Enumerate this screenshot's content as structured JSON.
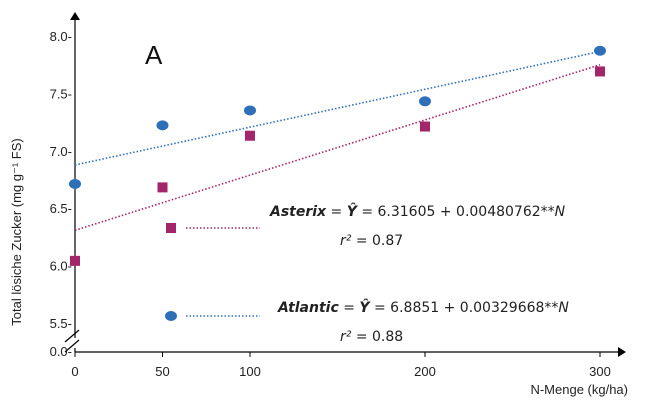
{
  "chart_data": {
    "type": "scatter",
    "panel_label": "A",
    "xlabel": "N-Menge (kg/ha)",
    "ylabel": "Total lösiche Zucker  (mg g⁻¹ FS)",
    "x_ticks": [
      "0",
      "50",
      "100",
      "200",
      "300"
    ],
    "x_tick_values": [
      0,
      50,
      100,
      200,
      300
    ],
    "y_ticks": [
      "8.0-",
      "7.5-",
      "7.0-",
      "6.5-",
      "6.0-",
      "5.5-",
      "0.0-"
    ],
    "y_tick_values": [
      8.0,
      7.5,
      7.0,
      6.5,
      6.0,
      5.5,
      0.0
    ],
    "y_axis_break": true,
    "xlim": [
      0,
      300
    ],
    "ylim": [
      5.4,
      8.1
    ],
    "grid": false,
    "series": [
      {
        "name": "Atlantic",
        "marker": "circle",
        "color": "#2f6fb8",
        "x": [
          0,
          50,
          100,
          200,
          300
        ],
        "y": [
          6.72,
          7.23,
          7.36,
          7.44,
          7.88
        ],
        "fit": {
          "intercept": 6.8851,
          "slope": 0.00329668
        },
        "equation": {
          "label": "Atlantic",
          "eq_prefix": " = ",
          "yhat": "Ŷ",
          "rhs": " = 6.8851 + 0.00329668**",
          "var": "N",
          "r2_label": "r²",
          "r2_value": " = 0.88"
        }
      },
      {
        "name": "Asterix",
        "marker": "square",
        "color": "#a3256a",
        "x": [
          0,
          50,
          100,
          200,
          300
        ],
        "y": [
          6.05,
          6.69,
          7.14,
          7.22,
          7.7
        ],
        "fit": {
          "intercept": 6.31605,
          "slope": 0.00480762
        },
        "equation": {
          "label": "Asterix",
          "eq_prefix": " = ",
          "yhat": "Ŷ",
          "rhs": " = 6.31605 + 0.00480762**",
          "var": "N",
          "r2_label": "r²",
          "r2_value": " = 0.87"
        }
      }
    ]
  }
}
